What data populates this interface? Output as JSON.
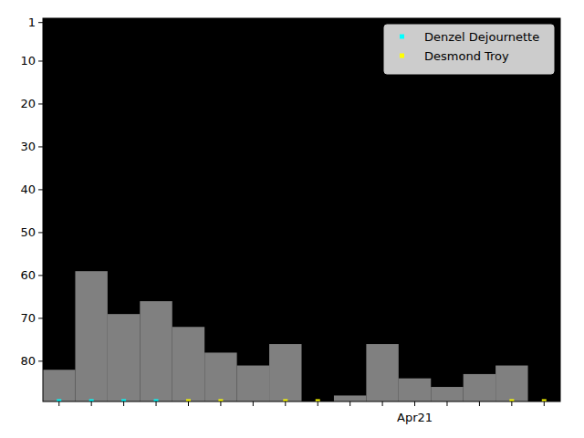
{
  "chart_data": {
    "type": "bar",
    "categories": [
      null,
      null,
      null,
      null,
      null,
      null,
      null,
      null,
      null,
      null,
      null,
      "Apr21",
      null,
      null,
      null,
      null
    ],
    "series": [
      {
        "type": "bar",
        "color": "#808080",
        "values": [
          82,
          59,
          69,
          66,
          72,
          78,
          81,
          76,
          null,
          88,
          76,
          84,
          86,
          83,
          81,
          null
        ]
      },
      {
        "name": "Denzel Dejournette",
        "type": "scatter",
        "color": "#00ffff",
        "marker": "square",
        "values": [
          89.4,
          89.4,
          89.4,
          89.4,
          null,
          null,
          null,
          null,
          null,
          null,
          null,
          null,
          null,
          null,
          null,
          null
        ]
      },
      {
        "name": "Desmond Troy",
        "type": "scatter",
        "color": "#ffff00",
        "marker": "square",
        "values": [
          null,
          null,
          null,
          null,
          89.4,
          89.4,
          null,
          89.4,
          89.4,
          null,
          null,
          null,
          null,
          null,
          89.4,
          89.4
        ]
      }
    ],
    "ylim": [
      89.4,
      0
    ],
    "yticks": [
      1,
      10,
      20,
      30,
      40,
      50,
      60,
      70,
      80
    ],
    "grid": false,
    "legend": "upper right"
  }
}
